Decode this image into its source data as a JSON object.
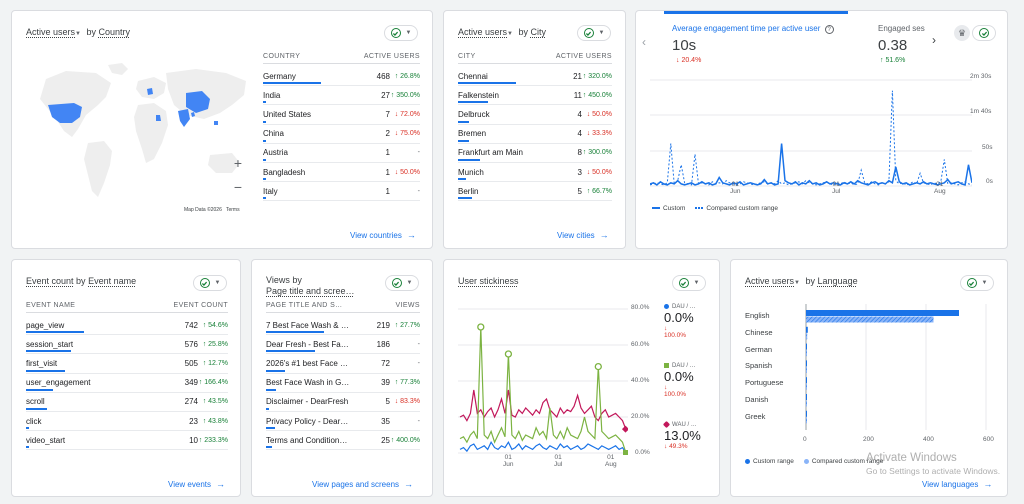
{
  "country_card": {
    "title_metric": "Active users",
    "title_by": "by",
    "title_dim": "Country",
    "col1": "COUNTRY",
    "col2": "ACTIVE USERS",
    "rows": [
      {
        "name": "Germany",
        "value": "468",
        "change": "26.8%",
        "dir": "up",
        "bar": 1.0
      },
      {
        "name": "India",
        "value": "27",
        "change": "350.0%",
        "dir": "up",
        "bar": 0.06
      },
      {
        "name": "United States",
        "value": "7",
        "change": "72.0%",
        "dir": "down",
        "bar": 0.02
      },
      {
        "name": "China",
        "value": "2",
        "change": "75.0%",
        "dir": "down",
        "bar": 0.01
      },
      {
        "name": "Austria",
        "value": "1",
        "change": "-",
        "dir": "neutral",
        "bar": 0.005
      },
      {
        "name": "Bangladesh",
        "value": "1",
        "change": "50.0%",
        "dir": "down",
        "bar": 0.005
      },
      {
        "name": "Italy",
        "value": "1",
        "change": "-",
        "dir": "neutral",
        "bar": 0.005
      }
    ],
    "map_credit": "Map Data ©2026",
    "map_terms": "Terms",
    "zoom_in": "+",
    "zoom_out": "−",
    "link": "View countries"
  },
  "city_card": {
    "title_metric": "Active users",
    "title_by": "by",
    "title_dim": "City",
    "col1": "CITY",
    "col2": "ACTIVE USERS",
    "rows": [
      {
        "name": "Chennai",
        "value": "21",
        "change": "320.0%",
        "dir": "up",
        "bar": 1.0
      },
      {
        "name": "Falkenstein",
        "value": "11",
        "change": "450.0%",
        "dir": "up",
        "bar": 0.52
      },
      {
        "name": "Delbruck",
        "value": "4",
        "change": "50.0%",
        "dir": "down",
        "bar": 0.19
      },
      {
        "name": "Bremen",
        "value": "4",
        "change": "33.3%",
        "dir": "down",
        "bar": 0.19
      },
      {
        "name": "Frankfurt am Main",
        "value": "8",
        "change": "300.0%",
        "dir": "up",
        "bar": 0.38
      },
      {
        "name": "Munich",
        "value": "3",
        "change": "50.0%",
        "dir": "down",
        "bar": 0.14
      },
      {
        "name": "Berlin",
        "value": "5",
        "change": "66.7%",
        "dir": "up",
        "bar": 0.24
      }
    ],
    "link": "View cities"
  },
  "engagement_card": {
    "metric1_label": "Average engagement time per active user",
    "metric1_value": "10s",
    "metric1_change": "20.4%",
    "metric2_label": "Engaged ses",
    "metric2_value": "0.38",
    "metric2_change": "51.6%",
    "help_icon": "?",
    "y_ticks": [
      "2m 30s",
      "1m 40s",
      "50s",
      "0s"
    ],
    "x_ticks": [
      {
        "d": "01",
        "m": "Jun"
      },
      {
        "d": "01",
        "m": "Jul"
      },
      {
        "d": "01",
        "m": "Aug"
      }
    ],
    "legend_custom": "Custom",
    "legend_compared": "Compared custom range",
    "colors": {
      "primary": "#1a73e8"
    }
  },
  "event_card": {
    "title_metric": "Event count",
    "title_by": "by",
    "title_dim": "Event name",
    "col1": "EVENT NAME",
    "col2": "EVENT COUNT",
    "rows": [
      {
        "name": "page_view",
        "value": "742",
        "change": "54.6%",
        "dir": "up",
        "bar": 1.0
      },
      {
        "name": "session_start",
        "value": "576",
        "change": "25.8%",
        "dir": "up",
        "bar": 0.78
      },
      {
        "name": "first_visit",
        "value": "505",
        "change": "12.7%",
        "dir": "up",
        "bar": 0.68
      },
      {
        "name": "user_engagement",
        "value": "349",
        "change": "166.4%",
        "dir": "up",
        "bar": 0.47
      },
      {
        "name": "scroll",
        "value": "274",
        "change": "43.5%",
        "dir": "up",
        "bar": 0.37
      },
      {
        "name": "click",
        "value": "23",
        "change": "43.8%",
        "dir": "up",
        "bar": 0.03
      },
      {
        "name": "video_start",
        "value": "10",
        "change": "233.3%",
        "dir": "up",
        "bar": 0.014
      }
    ],
    "link": "View events"
  },
  "views_card": {
    "title_line1": "Views by",
    "title_line2": "Page title and scree…",
    "col1": "PAGE TITLE AND S…",
    "col2": "VIEWS",
    "rows": [
      {
        "name": "7 Best Face Wash & …",
        "value": "219",
        "change": "27.7%",
        "dir": "up",
        "bar": 1.0
      },
      {
        "name": "Dear Fresh - Best Fa…",
        "value": "186",
        "change": "-",
        "dir": "neutral",
        "bar": 0.85
      },
      {
        "name": "2026's #1 best Face …",
        "value": "72",
        "change": "-",
        "dir": "neutral",
        "bar": 0.33
      },
      {
        "name": "Best Face Wash in G…",
        "value": "39",
        "change": "77.3%",
        "dir": "up",
        "bar": 0.18
      },
      {
        "name": "Disclaimer - DearFresh",
        "value": "5",
        "change": "83.3%",
        "dir": "down",
        "bar": 0.02
      },
      {
        "name": "Privacy Policy - Dear…",
        "value": "35",
        "change": "-",
        "dir": "neutral",
        "bar": 0.16
      },
      {
        "name": "Terms and Condition…",
        "value": "25",
        "change": "400.0%",
        "dir": "up",
        "bar": 0.11
      }
    ],
    "link": "View pages and screens"
  },
  "stickiness_card": {
    "title": "User stickiness",
    "y_ticks": [
      "80.0%",
      "60.0%",
      "40.0%",
      "20.0%",
      "0.0%"
    ],
    "x_ticks": [
      {
        "d": "01",
        "m": "Jun"
      },
      {
        "d": "01",
        "m": "Jul"
      },
      {
        "d": "01",
        "m": "Aug"
      }
    ],
    "series": [
      {
        "name": "DAU / …",
        "value": "0.0%",
        "change": "100.0%",
        "color": "#1a73e8"
      },
      {
        "name": "DAU / …",
        "value": "0.0%",
        "change": "100.0%",
        "color": "#7cb342"
      },
      {
        "name": "WAU / …",
        "value": "13.0%",
        "change": "49.3%",
        "color": "#c2185b"
      }
    ]
  },
  "language_card": {
    "title_metric": "Active users",
    "title_by": "by",
    "title_dim": "Language",
    "chart_data": {
      "type": "bar",
      "categories": [
        "English",
        "Chinese",
        "German",
        "Spanish",
        "Portuguese",
        "Danish",
        "Greek"
      ],
      "series": [
        {
          "name": "Custom range",
          "values": [
            510,
            6,
            3,
            2,
            2,
            1,
            1
          ]
        },
        {
          "name": "Compared custom range",
          "values": [
            425,
            4,
            2,
            1,
            1,
            1,
            1
          ]
        }
      ],
      "xlim": [
        0,
        600
      ],
      "x_ticks": [
        "0",
        "200",
        "400",
        "600"
      ]
    },
    "legend_custom": "Custom range",
    "legend_compared": "Compared custom range",
    "link": "View languages"
  },
  "watermark": {
    "line1": "Activate Windows",
    "line2": "Go to Settings to activate Windows."
  }
}
